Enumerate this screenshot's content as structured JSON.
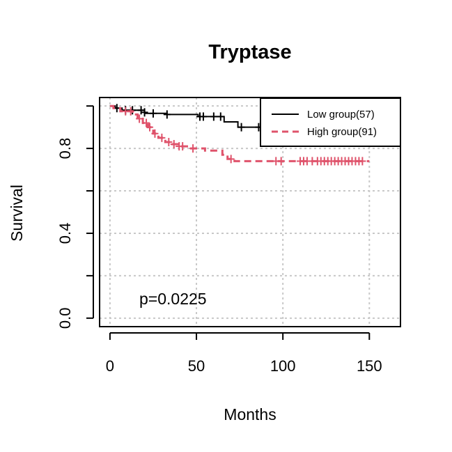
{
  "chart_data": {
    "type": "line",
    "title": "Tryptase",
    "xlabel": "Months",
    "ylabel": "Survival",
    "xlim": [
      -6,
      168
    ],
    "ylim": [
      -0.04,
      1.04
    ],
    "xticks": [
      0,
      50,
      100,
      150
    ],
    "xtick_labels": [
      "0",
      "50",
      "100",
      "150"
    ],
    "yticks": [
      0.0,
      0.2,
      0.4,
      0.6,
      0.8,
      1.0
    ],
    "ytick_labels": [
      "0.0",
      "",
      "0.4",
      "",
      "0.8",
      ""
    ],
    "grid": true,
    "legend_position": "top-right",
    "annotation": "p=0.0225",
    "series": [
      {
        "name": "Low group(57)",
        "color": "#000000",
        "line_style": "solid",
        "steps": [
          [
            0,
            1.0
          ],
          [
            3,
            1.0
          ],
          [
            3,
            0.99
          ],
          [
            7,
            0.99
          ],
          [
            7,
            0.98
          ],
          [
            20,
            0.98
          ],
          [
            20,
            0.965
          ],
          [
            33,
            0.965
          ],
          [
            33,
            0.96
          ],
          [
            51,
            0.96
          ],
          [
            51,
            0.95
          ],
          [
            66,
            0.95
          ],
          [
            66,
            0.925
          ],
          [
            74,
            0.925
          ],
          [
            74,
            0.9
          ],
          [
            88,
            0.9
          ]
        ],
        "censor_x": [
          4,
          9,
          13,
          18,
          20,
          25,
          33,
          52,
          54,
          60,
          64,
          76,
          86
        ],
        "censor_y": [
          0.99,
          0.98,
          0.98,
          0.98,
          0.97,
          0.965,
          0.96,
          0.95,
          0.95,
          0.95,
          0.95,
          0.9,
          0.9
        ]
      },
      {
        "name": "High group(91)",
        "color": "#df536b",
        "line_style": "dashed",
        "steps": [
          [
            0,
            1.0
          ],
          [
            2,
            1.0
          ],
          [
            2,
            0.99
          ],
          [
            6,
            0.99
          ],
          [
            6,
            0.975
          ],
          [
            13,
            0.975
          ],
          [
            13,
            0.96
          ],
          [
            16,
            0.96
          ],
          [
            16,
            0.94
          ],
          [
            19,
            0.94
          ],
          [
            19,
            0.92
          ],
          [
            22,
            0.92
          ],
          [
            22,
            0.9
          ],
          [
            25,
            0.9
          ],
          [
            25,
            0.87
          ],
          [
            28,
            0.87
          ],
          [
            28,
            0.85
          ],
          [
            32,
            0.85
          ],
          [
            32,
            0.83
          ],
          [
            36,
            0.83
          ],
          [
            36,
            0.82
          ],
          [
            40,
            0.82
          ],
          [
            40,
            0.81
          ],
          [
            46,
            0.81
          ],
          [
            46,
            0.8
          ],
          [
            55,
            0.8
          ],
          [
            55,
            0.79
          ],
          [
            65,
            0.79
          ],
          [
            65,
            0.77
          ],
          [
            68,
            0.77
          ],
          [
            68,
            0.75
          ],
          [
            72,
            0.75
          ],
          [
            72,
            0.74
          ],
          [
            150,
            0.74
          ]
        ],
        "censor_x": [
          9,
          12,
          17,
          21,
          23,
          26,
          30,
          34,
          37,
          40,
          42,
          48,
          70,
          96,
          99,
          110,
          112,
          114,
          117,
          120,
          122,
          124,
          126,
          128,
          130,
          132,
          134,
          136,
          138,
          140,
          142,
          144,
          146
        ],
        "censor_y": [
          0.975,
          0.975,
          0.94,
          0.92,
          0.9,
          0.87,
          0.85,
          0.83,
          0.82,
          0.81,
          0.81,
          0.8,
          0.75,
          0.74,
          0.74,
          0.74,
          0.74,
          0.74,
          0.74,
          0.74,
          0.74,
          0.74,
          0.74,
          0.74,
          0.74,
          0.74,
          0.74,
          0.74,
          0.74,
          0.74,
          0.74,
          0.74,
          0.74
        ]
      }
    ]
  }
}
